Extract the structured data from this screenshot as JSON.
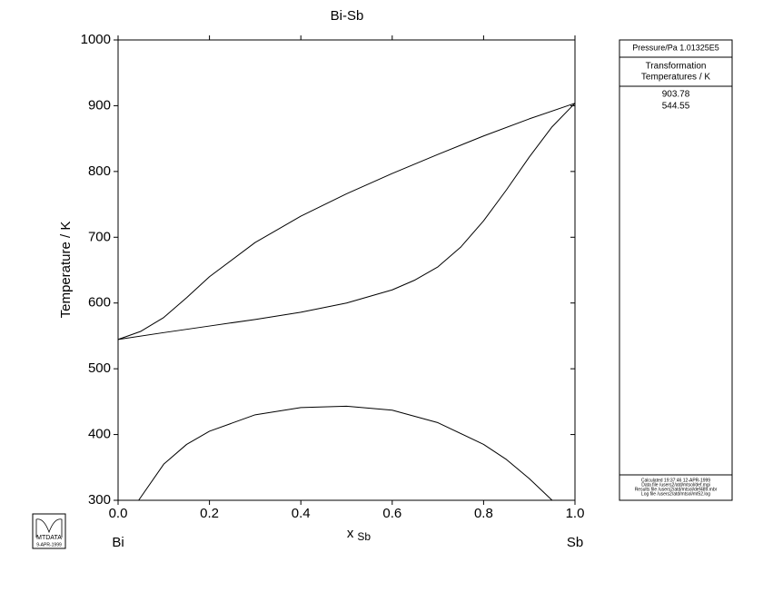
{
  "chart_data": {
    "type": "line",
    "title": "Bi-Sb",
    "y_label": "Temperature / K",
    "x_label": {
      "text": "x",
      "subscript": "Sb"
    },
    "components": [
      "Bi",
      "Sb"
    ],
    "xlim": [
      0,
      1
    ],
    "xticks": [
      {
        "value": 0,
        "label": "0.0"
      },
      0.2,
      0.4,
      0.6,
      0.8,
      {
        "value": 1,
        "label": "1.0"
      }
    ],
    "ylim": [
      300,
      1000
    ],
    "yticks": [
      300,
      400,
      500,
      600,
      700,
      800,
      900,
      1000
    ],
    "color": "#000000",
    "curves": [
      {
        "x": [
          0,
          0.05,
          0.1,
          0.15,
          0.2,
          0.3,
          0.4,
          0.5,
          0.6,
          0.7,
          0.8,
          0.9,
          1.0
        ],
        "y": [
          544.55,
          557,
          578,
          608,
          640,
          692,
          732,
          766,
          797,
          826,
          854,
          880,
          903.78
        ]
      },
      {
        "x": [
          0,
          0.1,
          0.2,
          0.3,
          0.4,
          0.5,
          0.6,
          0.65,
          0.7,
          0.75,
          0.8,
          0.85,
          0.9,
          0.95,
          1.0
        ],
        "y": [
          544.55,
          555,
          565,
          575,
          586,
          600,
          620,
          635,
          655,
          685,
          725,
          772,
          822,
          868,
          903.78
        ]
      },
      {
        "x": [
          0.045,
          0.1,
          0.15,
          0.2,
          0.3,
          0.4,
          0.5,
          0.6,
          0.7,
          0.8,
          0.85,
          0.9,
          0.95
        ],
        "y": [
          300,
          355,
          385,
          405,
          430,
          441,
          443,
          437,
          418,
          385,
          362,
          333,
          300
        ]
      }
    ]
  },
  "panel": {
    "pressure": "Pressure/Pa  1.01325E5",
    "heading": [
      "Transformation",
      "Temperatures / K"
    ],
    "temperatures": [
      "903.78",
      "544.55"
    ],
    "footer": [
      "Calculated  19:37:46  12-APR-1999",
      "Data file  /users2/atd/mtsol/def.mgi",
      "Results file  /users2/atd/mtsol/def489.mbr",
      "Log file  /users2/atd/mtsol/mt52.log"
    ]
  },
  "logo": {
    "name": "MTDATA",
    "date": "9-APR-1999"
  }
}
